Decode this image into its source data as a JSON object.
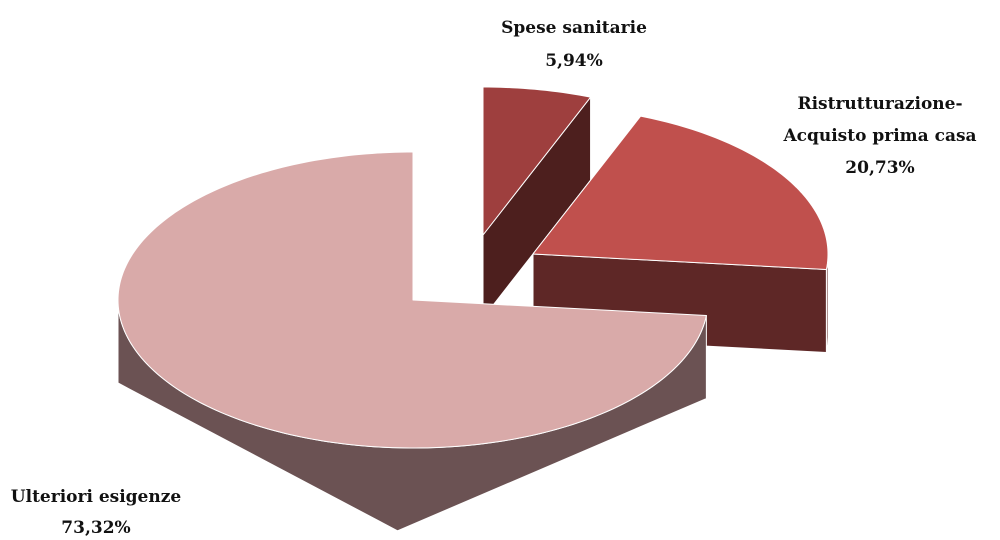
{
  "chart_data": {
    "type": "pie",
    "style": "3d-exploded",
    "slices": [
      {
        "label_lines": [
          "Spese sanitarie"
        ],
        "value": 5.94,
        "value_text": "5,94%",
        "color": "#9e3f3e",
        "side_color": "#4d1f1e"
      },
      {
        "label_lines": [
          "Ristrutturazione-",
          "Acquisto prima casa"
        ],
        "value": 20.73,
        "value_text": "20,73%",
        "color": "#c0504d",
        "side_color": "#5e2726"
      },
      {
        "label_lines": [
          "Ulteriori esigenze"
        ],
        "value": 73.32,
        "value_text": "73,32%",
        "color": "#d9aaa9",
        "side_color": "#6b5253"
      }
    ]
  }
}
